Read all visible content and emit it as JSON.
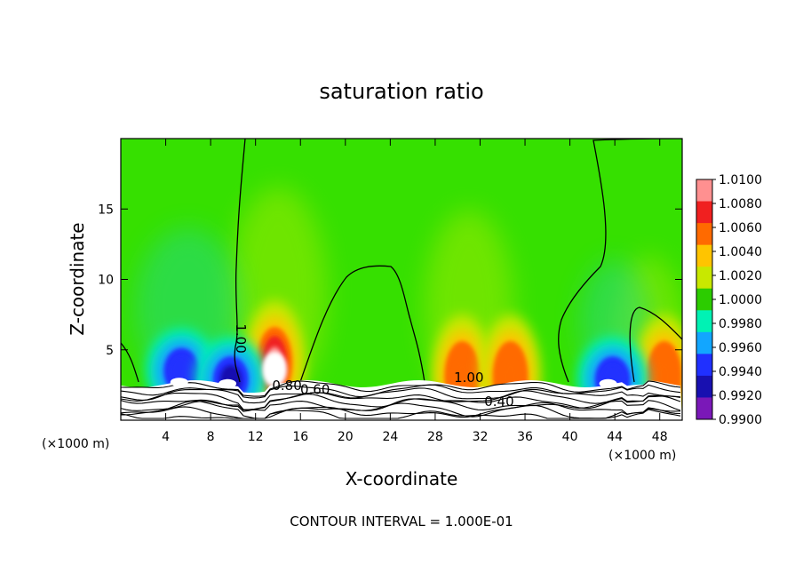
{
  "chart_data": {
    "type": "heatmap",
    "title": "saturation ratio",
    "xlabel": "X-coordinate",
    "ylabel": "Z-coordinate",
    "x_unit": "(×1000 m)",
    "x_unit_right": "(×1000 m)",
    "xlim": [
      0,
      50
    ],
    "ylim": [
      0,
      20
    ],
    "x_ticks": [
      4,
      8,
      12,
      16,
      20,
      24,
      28,
      32,
      36,
      40,
      44,
      48
    ],
    "y_ticks": [
      5,
      10,
      15
    ],
    "contour_interval_text": "CONTOUR INTERVAL = 1.000E-01",
    "colorbar": {
      "ticks": [
        "1.0100",
        "1.0080",
        "1.0060",
        "1.0040",
        "1.0020",
        "1.0000",
        "0.9980",
        "0.9960",
        "0.9940",
        "0.9920",
        "0.9900"
      ],
      "colors": [
        "#ff9090",
        "#f02020",
        "#ff6a00",
        "#ffc400",
        "#c8e800",
        "#2ccc00",
        "#00f2b4",
        "#12a6ff",
        "#2030ff",
        "#1810b0",
        "#7a18b8"
      ]
    },
    "background_color": "#36e000",
    "contour_labels": [
      {
        "text": "1.00",
        "x": 10.3,
        "z": 5.8
      },
      {
        "text": "0.80",
        "x": 14.8,
        "z": 2.15
      },
      {
        "text": "0.60",
        "x": 17.3,
        "z": 1.85
      },
      {
        "text": "1.00",
        "x": 31.0,
        "z": 2.7
      },
      {
        "text": "0.40",
        "x": 33.7,
        "z": 1.0
      }
    ],
    "features": [
      {
        "kind": "moist",
        "x": 13.7,
        "z": 4.6,
        "peak": 1.01
      },
      {
        "kind": "moist",
        "x": 30.4,
        "z": 3.6,
        "peak": 1.007
      },
      {
        "kind": "moist",
        "x": 34.7,
        "z": 3.6,
        "peak": 1.006
      },
      {
        "kind": "moist",
        "x": 48.4,
        "z": 3.6,
        "peak": 1.006
      },
      {
        "kind": "dry",
        "x": 5.4,
        "z": 4.0,
        "peak": 0.993
      },
      {
        "kind": "dry",
        "x": 9.8,
        "z": 3.4,
        "peak": 0.992
      },
      {
        "kind": "dry",
        "x": 43.8,
        "z": 3.4,
        "peak": 0.994
      }
    ]
  }
}
